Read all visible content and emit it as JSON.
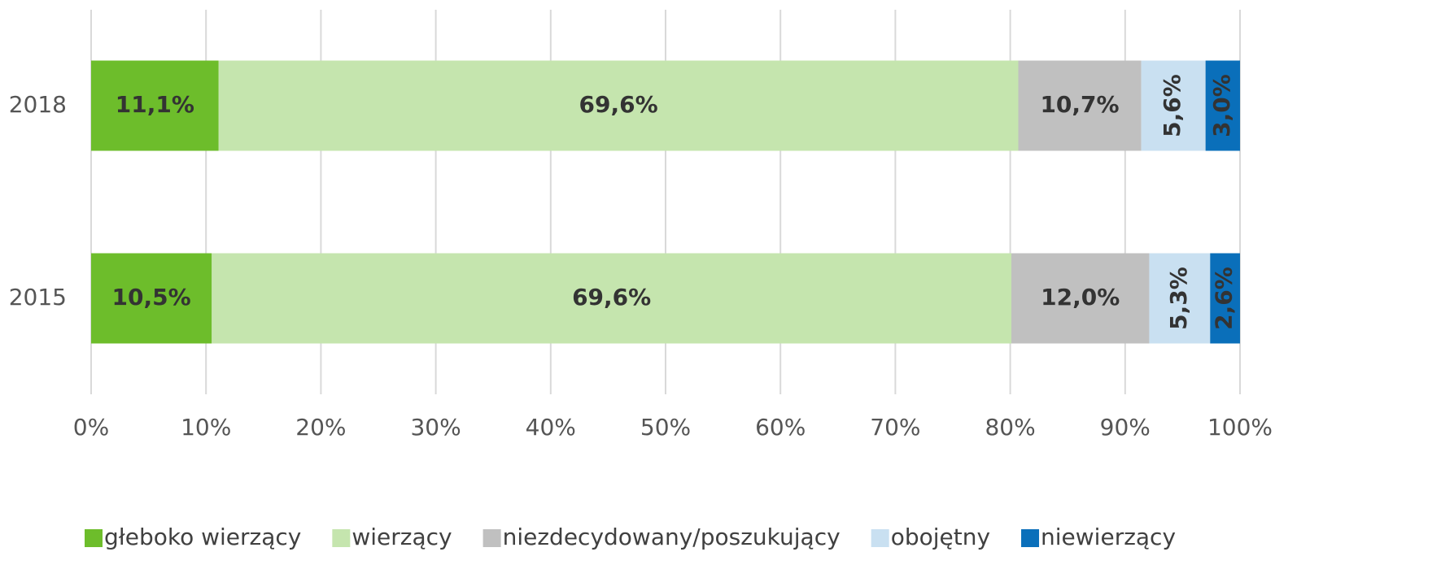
{
  "chart_data": {
    "type": "stacked_barh",
    "categories": [
      "2018",
      "2015"
    ],
    "series": [
      {
        "name": "głeboko wierzący",
        "color": "#6dbd2b",
        "values": [
          11.1,
          10.5
        ],
        "value_labels": [
          "11,1%",
          "10,5%"
        ]
      },
      {
        "name": "wierzący",
        "color": "#c5e5ae",
        "values": [
          69.6,
          69.6
        ],
        "value_labels": [
          "69,6%",
          "69,6%"
        ]
      },
      {
        "name": "niezdecydowany/poszukujący",
        "color": "#c0c0c0",
        "values": [
          10.7,
          12.0
        ],
        "value_labels": [
          "10,7%",
          "12,0%"
        ]
      },
      {
        "name": "obojętny",
        "color": "#c9e0f1",
        "values": [
          5.6,
          5.3
        ],
        "value_labels": [
          "5,6%",
          "5,3%"
        ]
      },
      {
        "name": "niewierzący",
        "color": "#0a6fba",
        "values": [
          3.0,
          2.6
        ],
        "value_labels": [
          "3,0%",
          "2,6%"
        ]
      }
    ],
    "xlim": [
      0,
      100
    ],
    "xticks": [
      {
        "value": 0,
        "label": "0%"
      },
      {
        "value": 10,
        "label": "10%"
      },
      {
        "value": 20,
        "label": "20%"
      },
      {
        "value": 30,
        "label": "30%"
      },
      {
        "value": 40,
        "label": "40%"
      },
      {
        "value": 50,
        "label": "50%"
      },
      {
        "value": 60,
        "label": "60%"
      },
      {
        "value": 70,
        "label": "70%"
      },
      {
        "value": 80,
        "label": "80%"
      },
      {
        "value": 90,
        "label": "90%"
      },
      {
        "value": 100,
        "label": "100%"
      }
    ],
    "grid": true,
    "legend": "bottom"
  }
}
